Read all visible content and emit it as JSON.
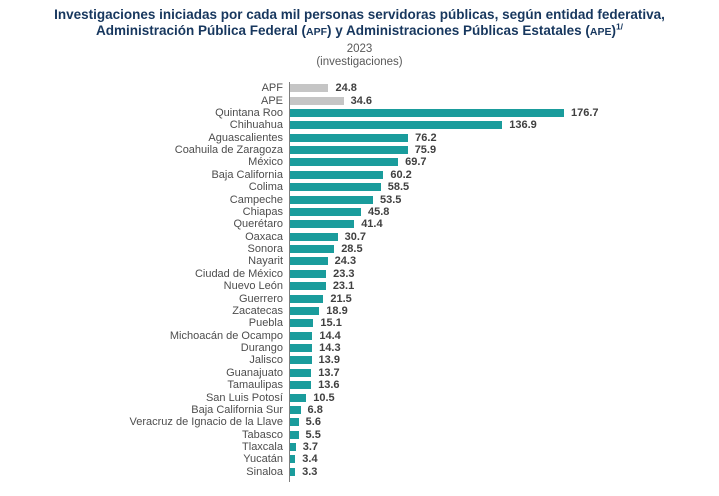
{
  "header": {
    "title_line1": "Investigaciones iniciadas por cada mil personas servidoras públicas, según entidad federativa,",
    "title_line2_segments": [
      {
        "text": "Administración Pública Federal ("
      },
      {
        "text": "APF",
        "style": "acronym"
      },
      {
        "text": ") y Administraciones Públicas Estatales ("
      },
      {
        "text": "APE",
        "style": "acronym"
      },
      {
        "text": ")"
      },
      {
        "text": "1/",
        "style": "superscript"
      }
    ],
    "year": "2023",
    "unit": "(investigaciones)"
  },
  "colors": {
    "title": "#17375E",
    "bar_teal": "#1A9C9C",
    "bar_gray": "#C5C5C5",
    "axis": "#7F7F7F",
    "category_text": "#4D4D4D",
    "value_text": "#404040"
  },
  "chart_data": {
    "type": "bar",
    "orientation": "horizontal",
    "title": "Investigaciones iniciadas por cada mil personas servidoras públicas, según entidad federativa, Administración Pública Federal (APF) y Administraciones Públicas Estatales (APE)1/",
    "subtitle": "2023",
    "unit": "(investigaciones)",
    "xlim": [
      0,
      190
    ],
    "grid": false,
    "legend": false,
    "value_labels": true,
    "gray_categories": [
      "APF",
      "APE"
    ],
    "categories": [
      "APF",
      "APE",
      "Quintana Roo",
      "Chihuahua",
      "Aguascalientes",
      "Coahuila de Zaragoza",
      "México",
      "Baja California",
      "Colima",
      "Campeche",
      "Chiapas",
      "Querétaro",
      "Oaxaca",
      "Sonora",
      "Nayarit",
      "Ciudad de México",
      "Nuevo León",
      "Guerrero",
      "Zacatecas",
      "Puebla",
      "Michoacán de Ocampo",
      "Durango",
      "Jalisco",
      "Guanajuato",
      "Tamaulipas",
      "San Luis Potosí",
      "Baja California Sur",
      "Veracruz de Ignacio de la Llave",
      "Tabasco",
      "Tlaxcala",
      "Yucatán",
      "Sinaloa"
    ],
    "values": [
      24.8,
      34.6,
      176.7,
      136.9,
      76.2,
      75.9,
      69.7,
      60.2,
      58.5,
      53.5,
      45.8,
      41.4,
      30.7,
      28.5,
      24.3,
      23.3,
      23.1,
      21.5,
      18.9,
      15.1,
      14.4,
      14.3,
      13.9,
      13.7,
      13.6,
      10.5,
      6.8,
      5.6,
      5.5,
      3.7,
      3.4,
      3.3
    ]
  }
}
